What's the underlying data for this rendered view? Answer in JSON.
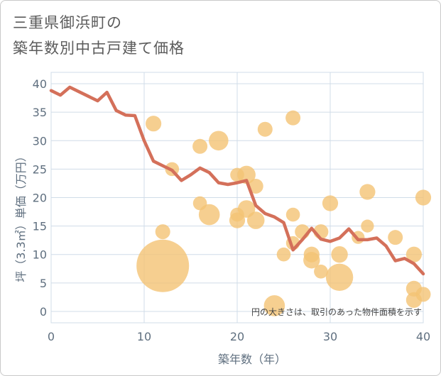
{
  "header": {
    "title_line1": "三重県御浜町の",
    "title_line2": "築年数別中古戸建て価格"
  },
  "chart_data": {
    "type": "scatter",
    "title": "三重県御浜町の 築年数別中古戸建て価格",
    "xlabel": "築年数（年）",
    "ylabel": "坪（3.3㎡）単価（万円）",
    "xlim": [
      0,
      40
    ],
    "ylim": [
      -2,
      42
    ],
    "x_ticks": [
      0,
      10,
      20,
      30,
      40
    ],
    "y_ticks": [
      0,
      5,
      10,
      15,
      20,
      25,
      30,
      35,
      40
    ],
    "grid": true,
    "note": "円の大きさは、取引のあった物件面積を示す",
    "colors": {
      "line": "#d4705a",
      "bubble": "#f4c374",
      "grid": "#d0dce8",
      "axis": "#5f6f7f"
    },
    "line_series": {
      "x": [
        0,
        1,
        2,
        3,
        4,
        5,
        6,
        7,
        8,
        9,
        10,
        11,
        12,
        13,
        14,
        15,
        16,
        17,
        18,
        19,
        20,
        21,
        22,
        23,
        24,
        25,
        26,
        27,
        28,
        29,
        30,
        31,
        32,
        33,
        34,
        35,
        36,
        37,
        38,
        39,
        40
      ],
      "y": [
        38.8,
        38.0,
        39.4,
        38.6,
        37.8,
        37.0,
        38.5,
        35.3,
        34.5,
        34.4,
        30.0,
        26.4,
        25.6,
        24.8,
        23.0,
        24.0,
        25.2,
        24.4,
        22.6,
        22.3,
        22.6,
        23.0,
        18.6,
        17.2,
        16.6,
        15.6,
        10.8,
        12.6,
        14.6,
        12.7,
        12.3,
        12.9,
        14.5,
        12.6,
        12.6,
        12.9,
        11.5,
        8.9,
        9.3,
        8.4,
        6.6
      ]
    },
    "bubbles": [
      {
        "x": 12,
        "y": 8,
        "size": 100
      },
      {
        "x": 11,
        "y": 33,
        "size": 9
      },
      {
        "x": 12,
        "y": 14,
        "size": 8
      },
      {
        "x": 13,
        "y": 25,
        "size": 7
      },
      {
        "x": 16,
        "y": 29,
        "size": 8
      },
      {
        "x": 16,
        "y": 19,
        "size": 7
      },
      {
        "x": 17,
        "y": 17,
        "size": 16
      },
      {
        "x": 18,
        "y": 30,
        "size": 14
      },
      {
        "x": 20,
        "y": 24,
        "size": 7
      },
      {
        "x": 20,
        "y": 17,
        "size": 7
      },
      {
        "x": 20,
        "y": 16,
        "size": 9
      },
      {
        "x": 21,
        "y": 24,
        "size": 12
      },
      {
        "x": 21,
        "y": 18,
        "size": 11
      },
      {
        "x": 22,
        "y": 22,
        "size": 8
      },
      {
        "x": 22,
        "y": 16,
        "size": 11
      },
      {
        "x": 23,
        "y": 32,
        "size": 8
      },
      {
        "x": 24,
        "y": 1,
        "size": 16
      },
      {
        "x": 25,
        "y": 10,
        "size": 7
      },
      {
        "x": 26,
        "y": 34,
        "size": 8
      },
      {
        "x": 26,
        "y": 17,
        "size": 7
      },
      {
        "x": 26,
        "y": 12,
        "size": 7
      },
      {
        "x": 27,
        "y": 14,
        "size": 8
      },
      {
        "x": 28,
        "y": 10,
        "size": 9
      },
      {
        "x": 28,
        "y": 9,
        "size": 10
      },
      {
        "x": 29,
        "y": 14,
        "size": 8
      },
      {
        "x": 29,
        "y": 7,
        "size": 7
      },
      {
        "x": 30,
        "y": 19,
        "size": 9
      },
      {
        "x": 31,
        "y": 10,
        "size": 10
      },
      {
        "x": 31,
        "y": 6,
        "size": 27
      },
      {
        "x": 33,
        "y": 13,
        "size": 6
      },
      {
        "x": 34,
        "y": 21,
        "size": 9
      },
      {
        "x": 34,
        "y": 15,
        "size": 6
      },
      {
        "x": 37,
        "y": 13,
        "size": 8
      },
      {
        "x": 39,
        "y": 10,
        "size": 9
      },
      {
        "x": 39,
        "y": 4,
        "size": 9
      },
      {
        "x": 39,
        "y": 2,
        "size": 9
      },
      {
        "x": 40,
        "y": 20,
        "size": 9
      },
      {
        "x": 40,
        "y": 3,
        "size": 8
      }
    ]
  }
}
